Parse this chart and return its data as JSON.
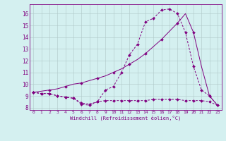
{
  "xlabel": "Windchill (Refroidissement éolien,°C)",
  "bg_color": "#d4f0f0",
  "line_color": "#800080",
  "grid_color": "#b0c8c8",
  "xlim": [
    -0.5,
    23.5
  ],
  "ylim": [
    7.8,
    16.8
  ],
  "xticks": [
    0,
    1,
    2,
    3,
    4,
    5,
    6,
    7,
    8,
    9,
    10,
    11,
    12,
    13,
    14,
    15,
    16,
    17,
    18,
    19,
    20,
    21,
    22,
    23
  ],
  "yticks": [
    8,
    9,
    10,
    11,
    12,
    13,
    14,
    15,
    16
  ],
  "line1_x": [
    0,
    1,
    2,
    3,
    4,
    5,
    6,
    7,
    8,
    9,
    10,
    11,
    12,
    13,
    14,
    15,
    16,
    17,
    18,
    19,
    20,
    21,
    22,
    23
  ],
  "line1_y": [
    9.3,
    9.2,
    9.2,
    9.0,
    8.9,
    8.8,
    8.3,
    8.2,
    8.5,
    9.5,
    9.8,
    11.0,
    12.5,
    13.4,
    15.3,
    15.6,
    16.3,
    16.4,
    16.0,
    14.4,
    11.5,
    9.5,
    9.0,
    8.2
  ],
  "line2_x": [
    0,
    1,
    2,
    3,
    4,
    5,
    6,
    7,
    8,
    9,
    10,
    11,
    12,
    13,
    14,
    15,
    16,
    17,
    18,
    19,
    20,
    21,
    22,
    23
  ],
  "line2_y": [
    9.3,
    9.2,
    9.2,
    9.0,
    8.9,
    8.8,
    8.4,
    8.3,
    8.5,
    8.6,
    8.6,
    8.6,
    8.6,
    8.6,
    8.6,
    8.7,
    8.7,
    8.7,
    8.7,
    8.6,
    8.6,
    8.6,
    8.5,
    8.2
  ],
  "line3_x": [
    0,
    1,
    2,
    3,
    4,
    5,
    6,
    7,
    8,
    9,
    10,
    11,
    12,
    13,
    14,
    15,
    16,
    17,
    18,
    19,
    20,
    21,
    22,
    23
  ],
  "line3_y": [
    9.3,
    9.4,
    9.5,
    9.6,
    9.8,
    10.0,
    10.1,
    10.3,
    10.5,
    10.7,
    11.0,
    11.3,
    11.7,
    12.1,
    12.6,
    13.2,
    13.8,
    14.5,
    15.2,
    16.0,
    14.4,
    11.5,
    9.0,
    8.2
  ]
}
